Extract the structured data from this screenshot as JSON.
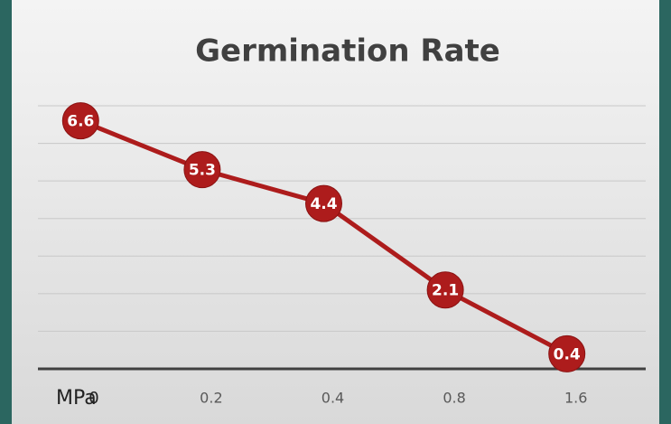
{
  "chart_data": {
    "type": "line",
    "title": "Germination Rate",
    "x_label": "MPa",
    "categories": [
      "0",
      "0.2",
      "0.4",
      "0.8",
      "1.6"
    ],
    "series": [
      {
        "name": "Germination Rate",
        "color": "#ad1c1c",
        "values": [
          6.6,
          5.3,
          4.4,
          2.1,
          0.4
        ]
      }
    ],
    "ylim": [
      0,
      7
    ],
    "yticks": [
      0,
      1,
      2,
      3,
      4,
      5,
      6,
      7
    ],
    "grid": true,
    "show_ytick_labels": false,
    "legend": false
  }
}
